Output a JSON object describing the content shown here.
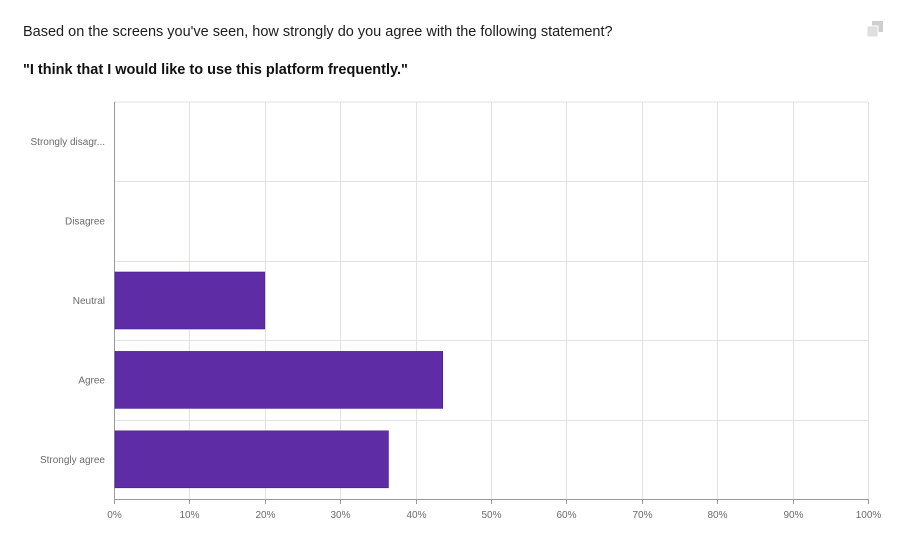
{
  "question": "Based on the screens you've seen, how strongly do you agree with the following statement?",
  "statement": "\"I think that I would like to use this platform frequently.\"",
  "icons": {
    "copy": "copy-icon"
  },
  "colors": {
    "bar": "#5e2ca5",
    "grid": "#e2e2e2",
    "axis": "#9a9a9a",
    "label": "#6b6b6b"
  },
  "chart_data": {
    "type": "bar",
    "orientation": "horizontal",
    "categories": [
      "Strongly disagr...",
      "Disagree",
      "Neutral",
      "Agree",
      "Strongly agree"
    ],
    "values": [
      0,
      0,
      20,
      43.6,
      36.4
    ],
    "xlim": [
      0,
      100
    ],
    "xticks": [
      "0%",
      "10%",
      "20%",
      "30%",
      "40%",
      "50%",
      "60%",
      "70%",
      "80%",
      "90%",
      "100%"
    ],
    "grid": true,
    "title": "",
    "xlabel": "",
    "ylabel": ""
  }
}
